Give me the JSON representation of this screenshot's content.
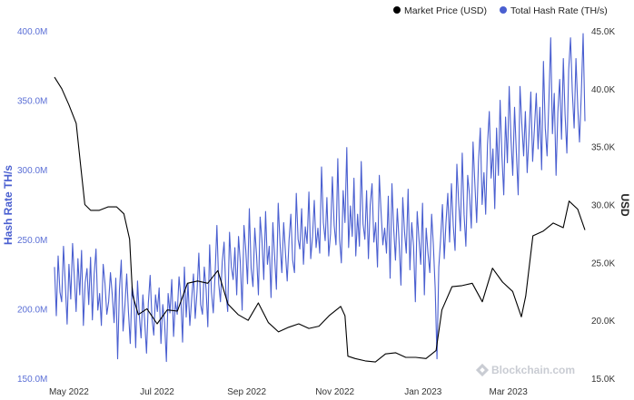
{
  "chart_data": {
    "type": "line",
    "legend_placement": "top-right",
    "grid": false,
    "legend": [
      {
        "name": "Market Price (USD)",
        "color": "#000000"
      },
      {
        "name": "Total Hash Rate (TH/s)",
        "color": "#4a5fd0"
      }
    ],
    "ylabel_left": "Hash Rate TH/s",
    "ylabel_right": "USD",
    "ylim_left": [
      150000000,
      400000000
    ],
    "ylim_right": [
      15000,
      45000
    ],
    "yticks_left": [
      "400.0M",
      "350.0M",
      "300.0M",
      "250.0M",
      "200.0M",
      "150.0M"
    ],
    "yticks_right": [
      "45.0K",
      "40.0K",
      "35.0K",
      "30.0K",
      "25.0K",
      "20.0K",
      "15.0K"
    ],
    "xticks": [
      "May 2022",
      "Jul 2022",
      "Sep 2022",
      "Nov 2022",
      "Jan 2023",
      "Mar 2023"
    ],
    "xlim": [
      "2022-04-21",
      "2023-04-23"
    ],
    "watermark": "Blockchain.com",
    "series": [
      {
        "name": "Market Price (USD)",
        "axis": "right",
        "color": "#000000",
        "x": [
          "2022-04-21",
          "2022-04-26",
          "2022-05-01",
          "2022-05-06",
          "2022-05-09",
          "2022-05-12",
          "2022-05-16",
          "2022-05-22",
          "2022-05-28",
          "2022-06-03",
          "2022-06-08",
          "2022-06-12",
          "2022-06-14",
          "2022-06-18",
          "2022-06-24",
          "2022-07-01",
          "2022-07-08",
          "2022-07-15",
          "2022-07-22",
          "2022-07-29",
          "2022-08-05",
          "2022-08-12",
          "2022-08-19",
          "2022-08-26",
          "2022-09-02",
          "2022-09-09",
          "2022-09-16",
          "2022-09-23",
          "2022-09-30",
          "2022-10-07",
          "2022-10-14",
          "2022-10-21",
          "2022-10-28",
          "2022-11-05",
          "2022-11-08",
          "2022-11-10",
          "2022-11-15",
          "2022-11-22",
          "2022-11-29",
          "2022-12-06",
          "2022-12-13",
          "2022-12-20",
          "2022-12-27",
          "2023-01-03",
          "2023-01-10",
          "2023-01-14",
          "2023-01-21",
          "2023-01-28",
          "2023-02-04",
          "2023-02-11",
          "2023-02-18",
          "2023-02-25",
          "2023-03-04",
          "2023-03-10",
          "2023-03-13",
          "2023-03-18",
          "2023-03-25",
          "2023-04-01",
          "2023-04-08",
          "2023-04-12",
          "2023-04-18",
          "2023-04-23"
        ],
        "values": [
          41000,
          40000,
          38600,
          37000,
          33500,
          30000,
          29500,
          29500,
          29800,
          29800,
          29200,
          27000,
          22200,
          20500,
          21000,
          19700,
          20900,
          20800,
          23200,
          23400,
          23200,
          24300,
          21400,
          20500,
          20000,
          21500,
          19800,
          19000,
          19400,
          19700,
          19300,
          19500,
          20400,
          21200,
          20400,
          16900,
          16700,
          16500,
          16400,
          17100,
          17200,
          16800,
          16800,
          16700,
          17400,
          20900,
          22900,
          23000,
          23200,
          21600,
          24500,
          23300,
          22500,
          20300,
          22100,
          27300,
          27700,
          28400,
          28000,
          30300,
          29600,
          27800
        ]
      },
      {
        "name": "Total Hash Rate (TH/s)",
        "axis": "left",
        "color": "#4a5fd0",
        "x_start": "2022-04-21",
        "x_end": "2023-04-23",
        "values": [
          230000000,
          195000000,
          238000000,
          212000000,
          205000000,
          245000000,
          218000000,
          189000000,
          232000000,
          207000000,
          247000000,
          222000000,
          198000000,
          236000000,
          210000000,
          242000000,
          188000000,
          219000000,
          229000000,
          203000000,
          237000000,
          192000000,
          225000000,
          243000000,
          199000000,
          211000000,
          188000000,
          232000000,
          218000000,
          196000000,
          205000000,
          226000000,
          210000000,
          190000000,
          222000000,
          164000000,
          214000000,
          235000000,
          184000000,
          202000000,
          225000000,
          198000000,
          175000000,
          216000000,
          208000000,
          172000000,
          220000000,
          195000000,
          179000000,
          210000000,
          191000000,
          168000000,
          204000000,
          224000000,
          193000000,
          181000000,
          210000000,
          198000000,
          215000000,
          175000000,
          203000000,
          190000000,
          162000000,
          211000000,
          197000000,
          221000000,
          180000000,
          205000000,
          196000000,
          223000000,
          209000000,
          176000000,
          230000000,
          194000000,
          218000000,
          188000000,
          207000000,
          225000000,
          193000000,
          212000000,
          240000000,
          203000000,
          196000000,
          230000000,
          214000000,
          187000000,
          246000000,
          212000000,
          197000000,
          225000000,
          260000000,
          218000000,
          205000000,
          234000000,
          248000000,
          212000000,
          198000000,
          255000000,
          230000000,
          221000000,
          244000000,
          210000000,
          252000000,
          233000000,
          199000000,
          260000000,
          242000000,
          218000000,
          272000000,
          229000000,
          216000000,
          258000000,
          238000000,
          210000000,
          266000000,
          249000000,
          221000000,
          270000000,
          232000000,
          245000000,
          208000000,
          262000000,
          238000000,
          214000000,
          276000000,
          247000000,
          226000000,
          262000000,
          240000000,
          220000000,
          249000000,
          268000000,
          235000000,
          226000000,
          283000000,
          250000000,
          243000000,
          272000000,
          232000000,
          259000000,
          247000000,
          284000000,
          236000000,
          252000000,
          278000000,
          244000000,
          258000000,
          240000000,
          302000000,
          262000000,
          249000000,
          280000000,
          238000000,
          254000000,
          295000000,
          260000000,
          246000000,
          308000000,
          250000000,
          233000000,
          285000000,
          262000000,
          316000000,
          244000000,
          274000000,
          252000000,
          294000000,
          238000000,
          268000000,
          245000000,
          306000000,
          261000000,
          250000000,
          285000000,
          236000000,
          275000000,
          290000000,
          248000000,
          262000000,
          230000000,
          296000000,
          270000000,
          246000000,
          258000000,
          240000000,
          281000000,
          222000000,
          290000000,
          258000000,
          235000000,
          272000000,
          248000000,
          217000000,
          280000000,
          255000000,
          240000000,
          286000000,
          228000000,
          262000000,
          245000000,
          205000000,
          270000000,
          250000000,
          232000000,
          276000000,
          210000000,
          258000000,
          240000000,
          226000000,
          268000000,
          246000000,
          215000000,
          164000000,
          230000000,
          250000000,
          275000000,
          236000000,
          262000000,
          283000000,
          248000000,
          290000000,
          260000000,
          242000000,
          304000000,
          276000000,
          256000000,
          312000000,
          268000000,
          245000000,
          296000000,
          282000000,
          258000000,
          320000000,
          290000000,
          262000000,
          306000000,
          330000000,
          275000000,
          298000000,
          268000000,
          318000000,
          342000000,
          294000000,
          315000000,
          272000000,
          330000000,
          296000000,
          350000000,
          310000000,
          282000000,
          338000000,
          305000000,
          360000000,
          322000000,
          296000000,
          345000000,
          312000000,
          282000000,
          360000000,
          333000000,
          310000000,
          342000000,
          298000000,
          325000000,
          356000000,
          306000000,
          330000000,
          355000000,
          315000000,
          345000000,
          300000000,
          378000000,
          330000000,
          310000000,
          350000000,
          395000000,
          326000000,
          355000000,
          296000000,
          342000000,
          365000000,
          322000000,
          380000000,
          340000000,
          312000000,
          372000000,
          395000000,
          356000000,
          330000000,
          380000000,
          345000000,
          320000000,
          355000000,
          398000000,
          335000000
        ]
      }
    ]
  }
}
